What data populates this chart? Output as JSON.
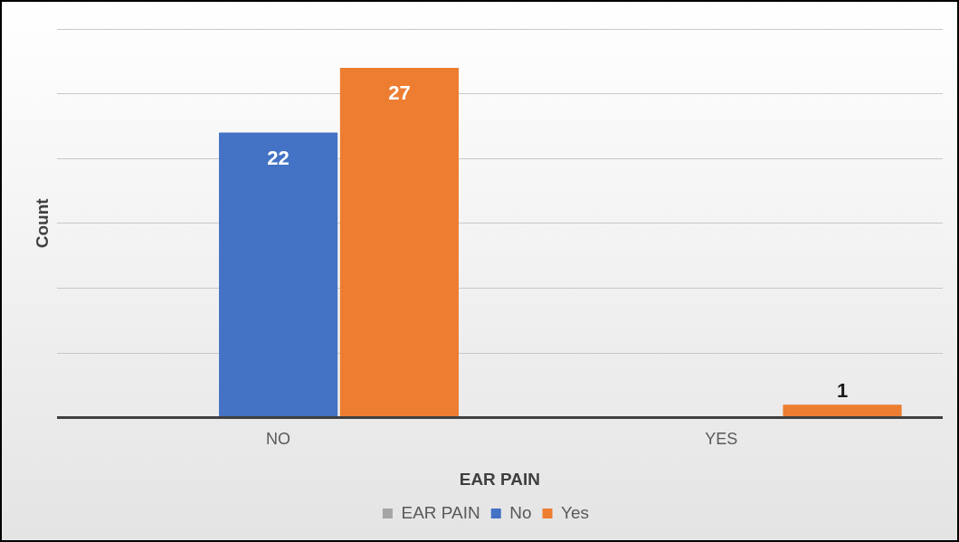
{
  "chart_data": {
    "type": "bar",
    "xlabel": "EAR PAIN",
    "ylabel": "Count",
    "categories": [
      "NO",
      "YES"
    ],
    "series": [
      {
        "name": "EAR PAIN",
        "color": "#a5a5a5",
        "values": [
          null,
          null
        ]
      },
      {
        "name": "No",
        "color": "#4472c4",
        "values": [
          22,
          null
        ]
      },
      {
        "name": "Yes",
        "color": "#ed7d31",
        "values": [
          27,
          1
        ]
      }
    ],
    "ylim": [
      0,
      30
    ],
    "yticks": [
      {
        "value": 0,
        "label": null
      },
      {
        "value": 5,
        "label": null
      },
      {
        "value": 10,
        "label": null
      },
      {
        "value": 15,
        "label": null
      },
      {
        "value": 20,
        "label": null
      },
      {
        "value": 25,
        "label": null
      },
      {
        "value": 30,
        "label": null
      }
    ],
    "tick_labels": "x",
    "grid": "y",
    "legend": "bottom",
    "data_labels": true
  }
}
